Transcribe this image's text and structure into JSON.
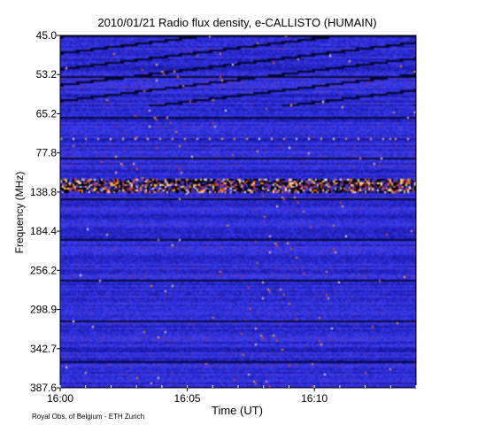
{
  "chart_data": {
    "type": "heatmap",
    "title": "2010/01/21  Radio flux density, e-CALLISTO (HUMAIN)",
    "xlabel": "Time (UT)",
    "ylabel": "Frequency (MHz)",
    "x_ticks": [
      "16:00",
      "16:05",
      "16:10"
    ],
    "y_ticks": [
      "45.0",
      "53.2",
      "65.2",
      "77.8",
      "138.8",
      "184.4",
      "256.2",
      "298.9",
      "342.7",
      "387.6"
    ],
    "x_range": [
      "16:00",
      "16:14"
    ],
    "y_range": [
      45.0,
      387.6
    ],
    "y_inverted": true,
    "colormap": [
      "#000000",
      "#12128f",
      "#2626c8",
      "#3e3ef0",
      "#8a2a3a",
      "#e83a10",
      "#ffa020",
      "#ffffe0"
    ],
    "features": [
      {
        "label": "strong interference band",
        "frequency_mhz": 138.8,
        "time_start": "16:00",
        "time_end": "16:14"
      },
      {
        "label": "periodic interference",
        "frequency_mhz": 77.8,
        "time_start": "16:00",
        "time_end": "16:14"
      }
    ]
  },
  "credit": "Royal Obs. of Belgium - ETH Zurich"
}
